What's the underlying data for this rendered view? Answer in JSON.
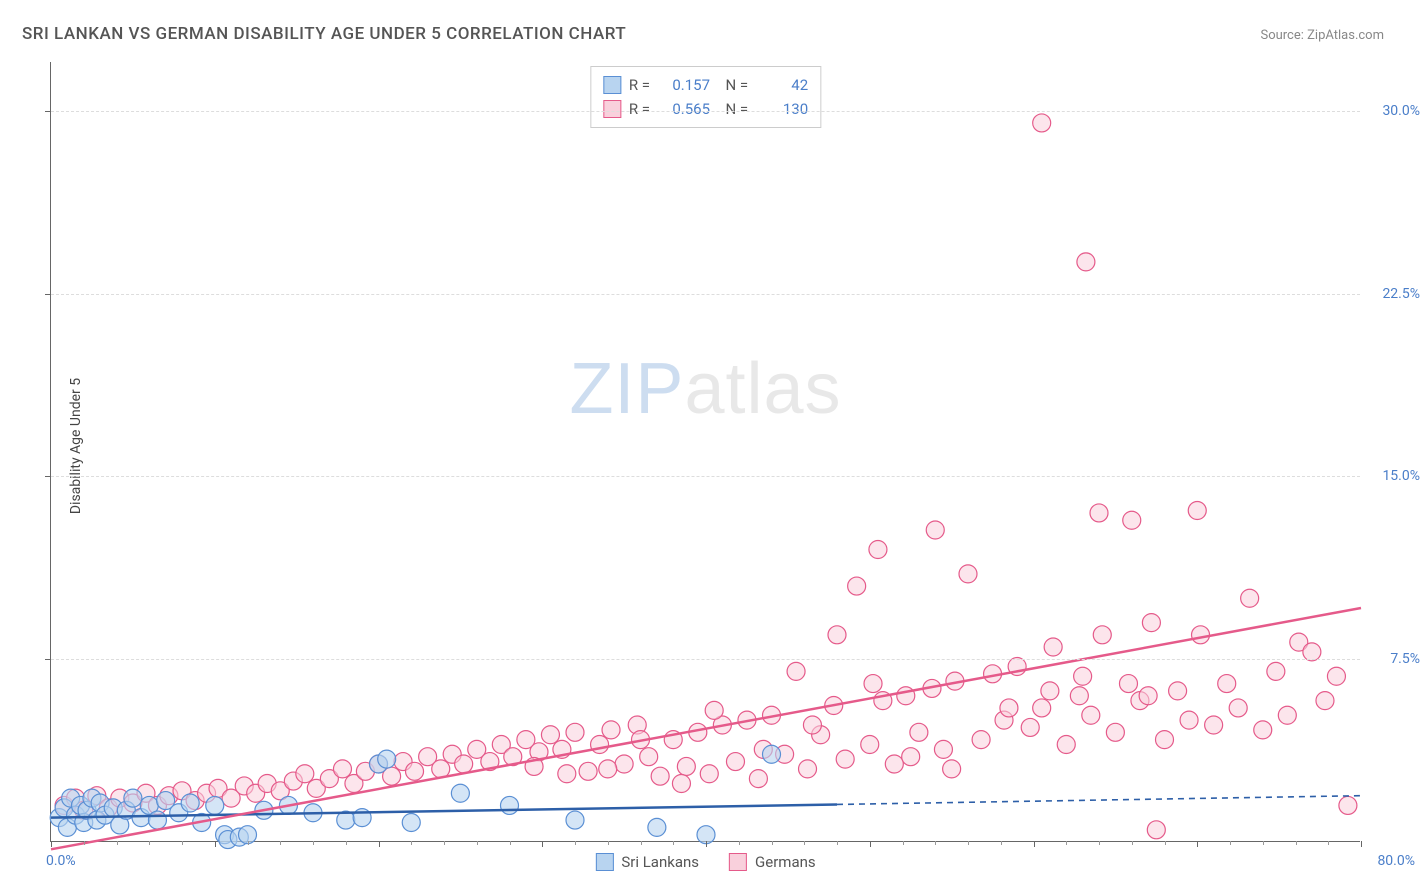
{
  "chart": {
    "type": "scatter",
    "title": "SRI LANKAN VS GERMAN DISABILITY AGE UNDER 5 CORRELATION CHART",
    "source_text": "Source: ZipAtlas.com",
    "ylabel": "Disability Age Under 5",
    "watermark_zip": "ZIP",
    "watermark_atlas": "atlas",
    "background_color": "#ffffff",
    "grid_color": "#dddddd",
    "axis_color": "#666666",
    "tick_label_color": "#4a7ec9",
    "title_color": "#555555",
    "title_fontsize": 17,
    "label_fontsize": 14,
    "xlim": [
      0,
      80
    ],
    "ylim": [
      0,
      32
    ],
    "x_start_label": "0.0%",
    "x_end_label": "80.0%",
    "y_ticks": [
      {
        "v": 7.5,
        "label": "7.5%"
      },
      {
        "v": 15.0,
        "label": "15.0%"
      },
      {
        "v": 22.5,
        "label": "22.5%"
      },
      {
        "v": 30.0,
        "label": "30.0%"
      }
    ],
    "x_major_ticks": [
      0,
      10,
      20,
      30,
      40,
      50,
      60,
      70,
      80
    ],
    "x_minor_step": 2,
    "series": [
      {
        "key": "sri_lankans",
        "name": "Sri Lankans",
        "point_fill": "#b8d4f0",
        "point_stroke": "#5a8fd4",
        "line_color": "#2d5fa8",
        "line_dash_after_x": 48,
        "marker_radius": 9,
        "marker_opacity": 0.6,
        "line_width": 2.5,
        "R": "0.157",
        "N": "42",
        "trend": {
          "x1": 0,
          "y1": 1.0,
          "x2": 80,
          "y2": 1.9
        },
        "points": [
          [
            0.5,
            1.0
          ],
          [
            0.8,
            1.4
          ],
          [
            1.0,
            0.6
          ],
          [
            1.2,
            1.8
          ],
          [
            1.5,
            1.1
          ],
          [
            1.8,
            1.5
          ],
          [
            2.0,
            0.8
          ],
          [
            2.2,
            1.3
          ],
          [
            2.5,
            1.8
          ],
          [
            2.8,
            0.9
          ],
          [
            3.0,
            1.6
          ],
          [
            3.3,
            1.1
          ],
          [
            3.8,
            1.4
          ],
          [
            4.2,
            0.7
          ],
          [
            4.6,
            1.3
          ],
          [
            5.0,
            1.8
          ],
          [
            5.5,
            1.0
          ],
          [
            6.0,
            1.5
          ],
          [
            6.5,
            0.9
          ],
          [
            7.0,
            1.7
          ],
          [
            7.8,
            1.2
          ],
          [
            8.5,
            1.6
          ],
          [
            9.2,
            0.8
          ],
          [
            10.0,
            1.5
          ],
          [
            10.6,
            0.3
          ],
          [
            10.8,
            0.1
          ],
          [
            11.5,
            0.2
          ],
          [
            12.0,
            0.3
          ],
          [
            13.0,
            1.3
          ],
          [
            14.5,
            1.5
          ],
          [
            16.0,
            1.2
          ],
          [
            18.0,
            0.9
          ],
          [
            19.0,
            1.0
          ],
          [
            20.0,
            3.2
          ],
          [
            20.5,
            3.4
          ],
          [
            22.0,
            0.8
          ],
          [
            25.0,
            2.0
          ],
          [
            28.0,
            1.5
          ],
          [
            32.0,
            0.9
          ],
          [
            37.0,
            0.6
          ],
          [
            40.0,
            0.3
          ],
          [
            44.0,
            3.6
          ]
        ]
      },
      {
        "key": "germans",
        "name": "Germans",
        "point_fill": "#f9d0dc",
        "point_stroke": "#e55a8a",
        "line_color": "#e55a8a",
        "line_dash_after_x": null,
        "marker_radius": 9,
        "marker_opacity": 0.55,
        "line_width": 2.5,
        "R": "0.565",
        "N": "130",
        "trend": {
          "x1": 0,
          "y1": -0.3,
          "x2": 80,
          "y2": 9.6
        },
        "points": [
          [
            0.8,
            1.5
          ],
          [
            1.5,
            1.8
          ],
          [
            2.0,
            1.3
          ],
          [
            2.8,
            1.9
          ],
          [
            3.5,
            1.4
          ],
          [
            4.2,
            1.8
          ],
          [
            5.0,
            1.6
          ],
          [
            5.8,
            2.0
          ],
          [
            6.5,
            1.5
          ],
          [
            7.2,
            1.9
          ],
          [
            8.0,
            2.1
          ],
          [
            8.8,
            1.7
          ],
          [
            9.5,
            2.0
          ],
          [
            10.2,
            2.2
          ],
          [
            11.0,
            1.8
          ],
          [
            11.8,
            2.3
          ],
          [
            12.5,
            2.0
          ],
          [
            13.2,
            2.4
          ],
          [
            14.0,
            2.1
          ],
          [
            14.8,
            2.5
          ],
          [
            15.5,
            2.8
          ],
          [
            16.2,
            2.2
          ],
          [
            17.0,
            2.6
          ],
          [
            17.8,
            3.0
          ],
          [
            18.5,
            2.4
          ],
          [
            19.2,
            2.9
          ],
          [
            20.0,
            3.2
          ],
          [
            20.8,
            2.7
          ],
          [
            21.5,
            3.3
          ],
          [
            22.2,
            2.9
          ],
          [
            23.0,
            3.5
          ],
          [
            23.8,
            3.0
          ],
          [
            24.5,
            3.6
          ],
          [
            25.2,
            3.2
          ],
          [
            26.0,
            3.8
          ],
          [
            26.8,
            3.3
          ],
          [
            27.5,
            4.0
          ],
          [
            28.2,
            3.5
          ],
          [
            29.0,
            4.2
          ],
          [
            29.8,
            3.7
          ],
          [
            30.5,
            4.4
          ],
          [
            31.2,
            3.8
          ],
          [
            32.0,
            4.5
          ],
          [
            32.8,
            2.9
          ],
          [
            33.5,
            4.0
          ],
          [
            34.2,
            4.6
          ],
          [
            35.0,
            3.2
          ],
          [
            35.8,
            4.8
          ],
          [
            36.5,
            3.5
          ],
          [
            37.2,
            2.7
          ],
          [
            38.0,
            4.2
          ],
          [
            38.8,
            3.1
          ],
          [
            39.5,
            4.5
          ],
          [
            40.2,
            2.8
          ],
          [
            41.0,
            4.8
          ],
          [
            41.8,
            3.3
          ],
          [
            42.5,
            5.0
          ],
          [
            43.2,
            2.6
          ],
          [
            44.0,
            5.2
          ],
          [
            44.8,
            3.6
          ],
          [
            45.5,
            7.0
          ],
          [
            46.2,
            3.0
          ],
          [
            47.0,
            4.4
          ],
          [
            47.8,
            5.6
          ],
          [
            48.5,
            3.4
          ],
          [
            49.2,
            10.5
          ],
          [
            50.0,
            4.0
          ],
          [
            50.8,
            5.8
          ],
          [
            50.5,
            12.0
          ],
          [
            51.5,
            3.2
          ],
          [
            52.2,
            6.0
          ],
          [
            53.0,
            4.5
          ],
          [
            53.8,
            6.3
          ],
          [
            54.5,
            3.8
          ],
          [
            54.0,
            12.8
          ],
          [
            55.2,
            6.6
          ],
          [
            56.0,
            11.0
          ],
          [
            56.8,
            4.2
          ],
          [
            57.5,
            6.9
          ],
          [
            58.2,
            5.0
          ],
          [
            59.0,
            7.2
          ],
          [
            59.8,
            4.7
          ],
          [
            60.5,
            5.5
          ],
          [
            61.2,
            8.0
          ],
          [
            62.0,
            4.0
          ],
          [
            62.8,
            6.0
          ],
          [
            63.5,
            5.2
          ],
          [
            64.2,
            8.5
          ],
          [
            64.0,
            13.5
          ],
          [
            65.0,
            4.5
          ],
          [
            65.8,
            6.5
          ],
          [
            60.5,
            29.5
          ],
          [
            66.5,
            5.8
          ],
          [
            66.0,
            13.2
          ],
          [
            67.2,
            9.0
          ],
          [
            68.0,
            4.2
          ],
          [
            68.8,
            6.2
          ],
          [
            69.5,
            5.0
          ],
          [
            70.2,
            8.5
          ],
          [
            71.0,
            4.8
          ],
          [
            63.2,
            23.8
          ],
          [
            71.8,
            6.5
          ],
          [
            72.5,
            5.5
          ],
          [
            73.2,
            10.0
          ],
          [
            74.0,
            4.6
          ],
          [
            74.8,
            7.0
          ],
          [
            75.5,
            5.2
          ],
          [
            76.2,
            8.2
          ],
          [
            77.0,
            7.8
          ],
          [
            77.8,
            5.8
          ],
          [
            78.5,
            6.8
          ],
          [
            79.2,
            1.5
          ],
          [
            67.5,
            0.5
          ],
          [
            55.0,
            3.0
          ],
          [
            58.5,
            5.5
          ],
          [
            61.0,
            6.2
          ],
          [
            63.0,
            6.8
          ],
          [
            67.0,
            6.0
          ],
          [
            70.0,
            13.6
          ],
          [
            52.5,
            3.5
          ],
          [
            48.0,
            8.5
          ],
          [
            50.2,
            6.5
          ],
          [
            46.5,
            4.8
          ],
          [
            43.5,
            3.8
          ],
          [
            40.5,
            5.4
          ],
          [
            38.5,
            2.4
          ],
          [
            36.0,
            4.2
          ],
          [
            34.0,
            3.0
          ],
          [
            31.5,
            2.8
          ],
          [
            29.5,
            3.1
          ]
        ]
      }
    ],
    "legend_top": {
      "r_label": "R =",
      "n_label": "N ="
    },
    "legend_bottom_order": [
      "sri_lankans",
      "germans"
    ]
  }
}
